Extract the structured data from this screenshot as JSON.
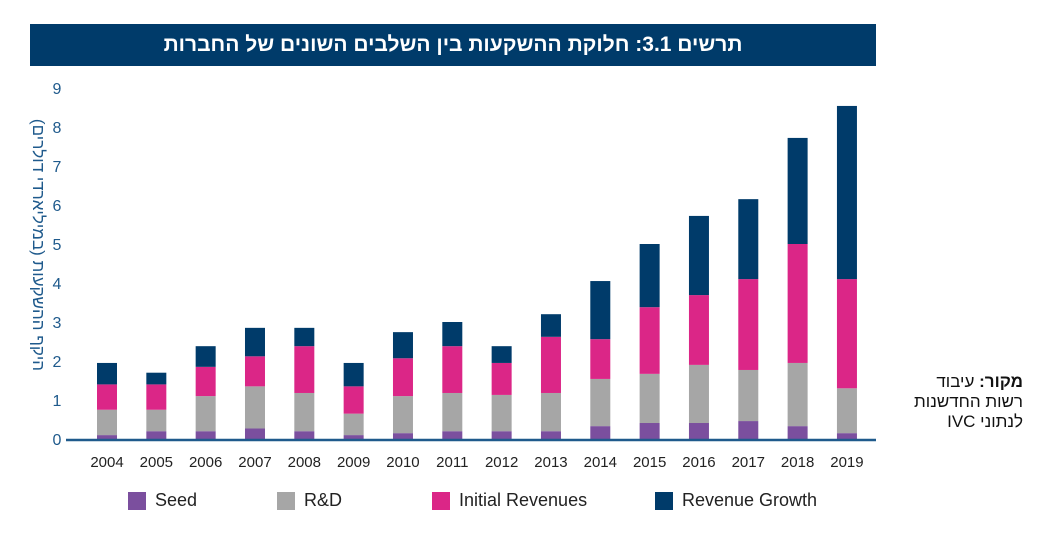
{
  "chart_data": {
    "type": "bar",
    "stacked": true,
    "title": "תרשים 3.1: חלוקת ההשקעות בין השלבים השונים של החברות",
    "xlabel": "",
    "ylabel": "היקף ההשקעות (במיליארדי דולרים)",
    "ylim": [
      0,
      9
    ],
    "yticks": [
      "0",
      "1",
      "2",
      "3",
      "4",
      "5",
      "6",
      "7",
      "8",
      "9"
    ],
    "categories": [
      "2004",
      "2005",
      "2006",
      "2007",
      "2008",
      "2009",
      "2010",
      "2011",
      "2012",
      "2013",
      "2014",
      "2015",
      "2016",
      "2017",
      "2018",
      "2019"
    ],
    "series": [
      {
        "name": "Seed",
        "color": "#7b4f9e",
        "values": [
          0.1,
          0.2,
          0.2,
          0.27,
          0.2,
          0.1,
          0.15,
          0.2,
          0.2,
          0.2,
          0.33,
          0.41,
          0.41,
          0.46,
          0.33,
          0.15
        ]
      },
      {
        "name": "R&D",
        "color": "#a6a6a6",
        "values": [
          0.65,
          0.55,
          0.9,
          1.08,
          0.98,
          0.55,
          0.95,
          0.98,
          0.93,
          0.98,
          1.21,
          1.26,
          1.49,
          1.31,
          1.62,
          1.15
        ]
      },
      {
        "name": "Initial Revenues",
        "color": "#db2687",
        "values": [
          0.65,
          0.65,
          0.75,
          0.77,
          1.2,
          0.7,
          0.97,
          1.2,
          0.82,
          1.44,
          1.02,
          1.71,
          1.79,
          2.33,
          3.05,
          2.8
        ]
      },
      {
        "name": "Revenue Growth",
        "color": "#003b6a",
        "values": [
          0.55,
          0.3,
          0.53,
          0.73,
          0.47,
          0.6,
          0.67,
          0.62,
          0.43,
          0.58,
          1.49,
          1.62,
          2.03,
          2.05,
          2.72,
          4.44
        ]
      }
    ],
    "legend_position": "bottom",
    "grid": false
  },
  "source": {
    "label": "מקור:",
    "line1": "עיבוד",
    "line2": "רשות החדשנות",
    "line3": "לנתוני IVC"
  },
  "colors": {
    "title_bg": "#003b6a",
    "axis": "#1f5a8c"
  }
}
